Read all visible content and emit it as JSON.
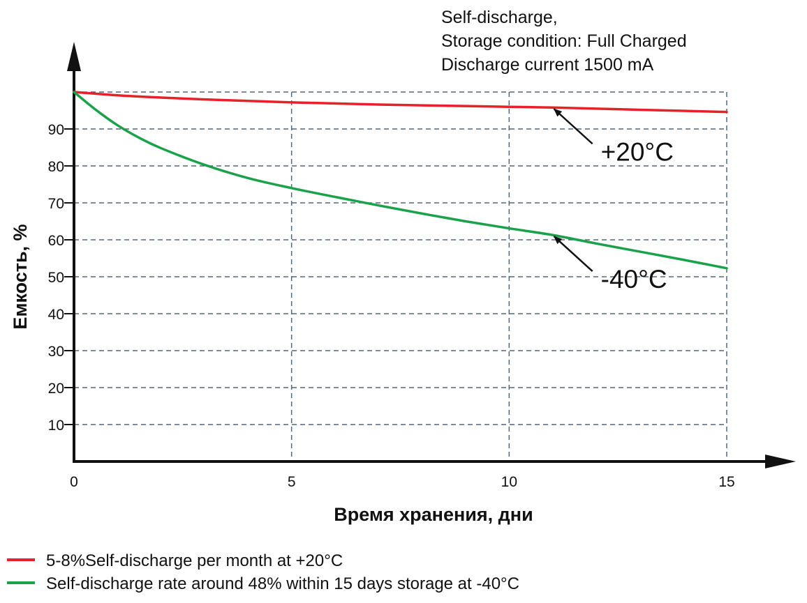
{
  "chart_data": {
    "type": "line",
    "title_lines": [
      "Self-discharge,",
      "Storage condition: Full Charged",
      "Discharge current 1500 mA"
    ],
    "xlabel": "Время хранения, дни",
    "ylabel": "Емкость, %",
    "xlim": [
      0,
      15
    ],
    "ylim": [
      0,
      100
    ],
    "x_ticks": [
      0,
      5,
      10,
      15
    ],
    "y_ticks": [
      10,
      20,
      30,
      40,
      50,
      60,
      70,
      80,
      90
    ],
    "grid": true,
    "series": [
      {
        "name": "5-8%Self-discharge per month at +20°C",
        "color": "#e8202a",
        "x": [
          0,
          1,
          2,
          3,
          4,
          5,
          6,
          7,
          8,
          9,
          10,
          11,
          12,
          13,
          14,
          15
        ],
        "y": [
          100,
          99.1,
          98.5,
          98.0,
          97.6,
          97.2,
          96.9,
          96.6,
          96.4,
          96.2,
          96.0,
          95.8,
          95.5,
          95.2,
          94.9,
          94.6
        ]
      },
      {
        "name": "Self-discharge rate around 48% within 15 days storage at -40°C",
        "color": "#1aa24a",
        "x": [
          0,
          0.5,
          1,
          1.5,
          2,
          3,
          4,
          5,
          6,
          7,
          8,
          9,
          10,
          11,
          12,
          13,
          14,
          15
        ],
        "y": [
          100,
          95.2,
          91.0,
          87.6,
          84.8,
          80.3,
          76.7,
          74.0,
          71.6,
          69.3,
          67.1,
          65.0,
          63.1,
          61.3,
          59.0,
          56.8,
          54.6,
          52.3
        ]
      }
    ],
    "annotations": [
      {
        "text": "+20°C",
        "series": 0,
        "x": 11
      },
      {
        "text": "-40°C",
        "series": 1,
        "x": 11
      }
    ]
  }
}
